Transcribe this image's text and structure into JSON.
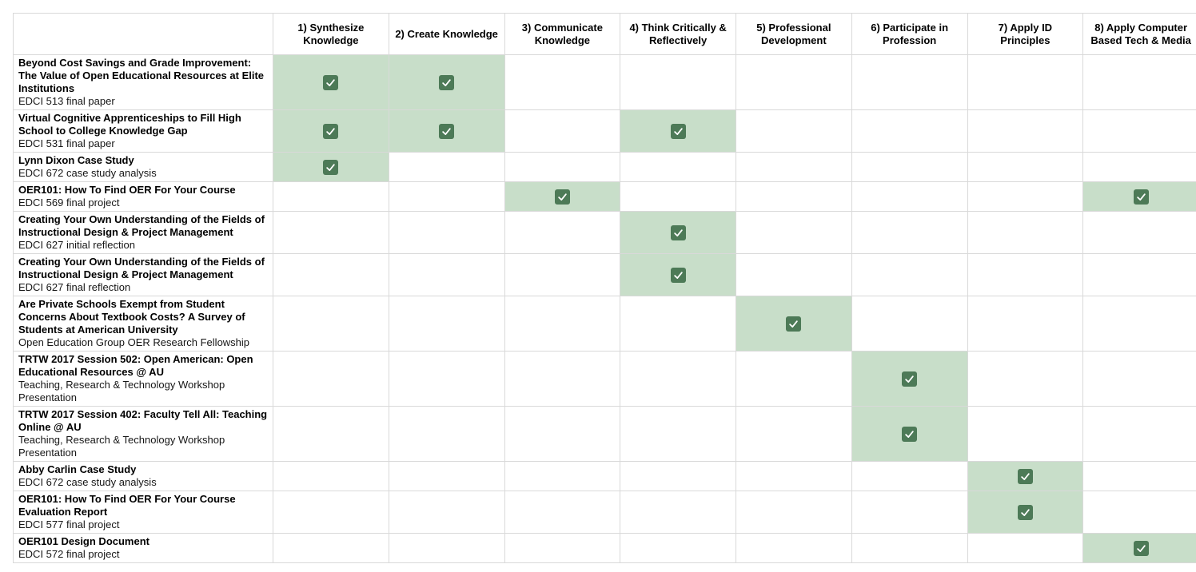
{
  "matrix": {
    "corner_label": "",
    "columns": [
      "1) Synthesize Knowledge",
      "2) Create Knowledge",
      "3) Communicate Knowledge",
      "4) Think Critically & Reflectively",
      "5) Professional Development",
      "6) Participate in Profession",
      "7) Apply ID Principles",
      "8) Apply Computer Based Tech & Media"
    ],
    "rows": [
      {
        "title": "Beyond Cost Savings and Grade Improvement: The Value of Open Educational Resources at Elite Institutions",
        "subtitle": "EDCI 513 final paper",
        "checks": [
          1,
          2
        ]
      },
      {
        "title": "Virtual Cognitive Apprenticeships to Fill High School to College Knowledge Gap",
        "subtitle": "EDCI 531 final paper",
        "checks": [
          1,
          2,
          4
        ]
      },
      {
        "title": "Lynn Dixon Case Study",
        "subtitle": "EDCI 672 case study analysis",
        "checks": [
          1
        ]
      },
      {
        "title": "OER101: How To Find OER For Your Course",
        "subtitle": "EDCI 569 final project",
        "checks": [
          3,
          8
        ]
      },
      {
        "title": "Creating Your Own Understanding of the Fields of Instructional Design & Project Management",
        "subtitle": "EDCI 627 initial reflection",
        "checks": [
          4
        ]
      },
      {
        "title": "Creating Your Own Understanding of the Fields of Instructional Design & Project Management",
        "subtitle": "EDCI 627 final reflection",
        "checks": [
          4
        ]
      },
      {
        "title": "Are Private Schools Exempt from Student Concerns About Textbook Costs? A Survey of Students at American University",
        "subtitle": "Open Education Group OER Research Fellowship",
        "checks": [
          5
        ]
      },
      {
        "title": "TRTW 2017 Session 502: Open American: Open Educational Resources @ AU",
        "subtitle": "Teaching, Research & Technology Workshop Presentation",
        "checks": [
          6
        ]
      },
      {
        "title": "TRTW 2017 Session 402: Faculty Tell All: Teaching Online @ AU",
        "subtitle": "Teaching, Research & Technology Workshop Presentation",
        "checks": [
          6
        ]
      },
      {
        "title": "Abby Carlin Case Study",
        "subtitle": "EDCI 672 case study analysis",
        "checks": [
          7
        ]
      },
      {
        "title": "OER101: How To Find OER For Your Course Evaluation Report",
        "subtitle": "EDCI 577 final project",
        "checks": [
          7
        ]
      },
      {
        "title": "OER101 Design Document",
        "subtitle": "EDCI 572 final project",
        "checks": [
          8
        ]
      }
    ],
    "icons": {
      "check": "checkbox-checked-icon"
    },
    "colors": {
      "highlight_cell": "#c8dec9",
      "checkbox_fill": "#4d7a57",
      "checkbox_checkmark": "#ffffff",
      "grid_border": "#d9d9d9"
    }
  }
}
